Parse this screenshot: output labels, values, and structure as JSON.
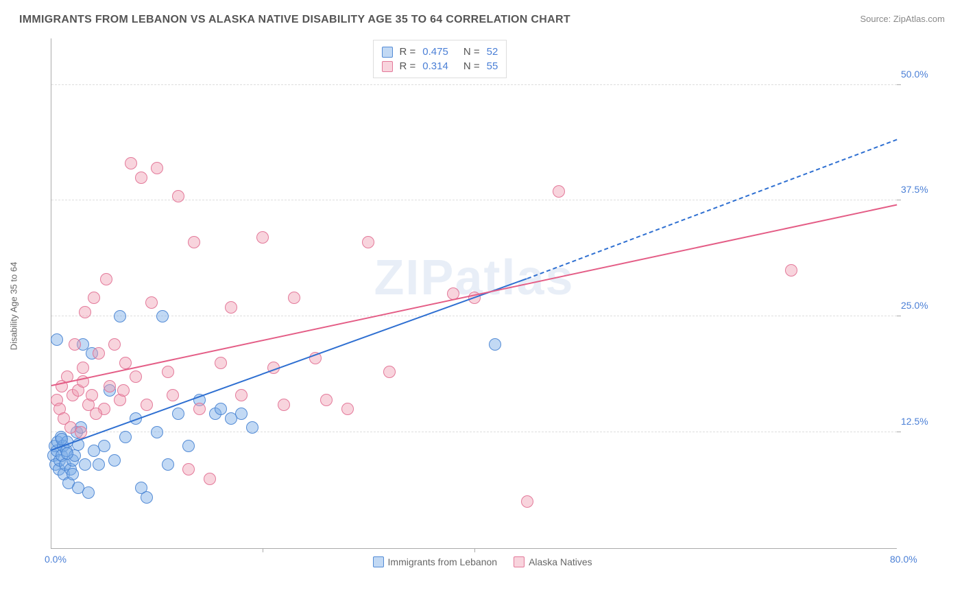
{
  "title": "IMMIGRANTS FROM LEBANON VS ALASKA NATIVE DISABILITY AGE 35 TO 64 CORRELATION CHART",
  "source_label": "Source: ",
  "source_name": "ZipAtlas.com",
  "ylabel": "Disability Age 35 to 64",
  "watermark": "ZIPatlas",
  "chart": {
    "type": "scatter",
    "xlim": [
      0,
      80
    ],
    "ylim": [
      0,
      55
    ],
    "x_ticks": [
      {
        "v": 0,
        "l": "0.0%"
      },
      {
        "v": 80,
        "l": "80.0%"
      }
    ],
    "x_minor_ticks": [
      20,
      40
    ],
    "y_ticks": [
      {
        "v": 12.5,
        "l": "12.5%"
      },
      {
        "v": 25,
        "l": "25.0%"
      },
      {
        "v": 37.5,
        "l": "37.5%"
      },
      {
        "v": 50,
        "l": "50.0%"
      }
    ],
    "background_color": "#ffffff",
    "grid_color": "#dddddd",
    "axis_color": "#aaaaaa",
    "tick_label_color": "#4a7fd6",
    "marker_radius": 9,
    "marker_opacity": 0.55,
    "marker_border_opacity": 0.9,
    "series": [
      {
        "key": "lebanon",
        "label": "Immigrants from Lebanon",
        "color_fill": "rgba(120,170,230,0.45)",
        "color_stroke": "rgba(70,130,210,0.9)",
        "trend_color": "#2e6fd1",
        "R": 0.475,
        "N": 52,
        "trend": {
          "x0": 0,
          "y0": 10.5,
          "x1": 45,
          "y1": 29,
          "ext_x": 80,
          "ext_y": 44,
          "dashed_ext": true
        },
        "points": [
          [
            0.2,
            10.0
          ],
          [
            0.3,
            11.0
          ],
          [
            0.4,
            9.0
          ],
          [
            0.5,
            10.5
          ],
          [
            0.6,
            11.5
          ],
          [
            0.7,
            8.5
          ],
          [
            0.8,
            9.5
          ],
          [
            0.9,
            12.0
          ],
          [
            1.0,
            10.0
          ],
          [
            1.1,
            11.0
          ],
          [
            1.2,
            8.0
          ],
          [
            1.3,
            9.0
          ],
          [
            1.4,
            10.5
          ],
          [
            1.5,
            11.5
          ],
          [
            1.6,
            7.0
          ],
          [
            1.8,
            8.5
          ],
          [
            2.0,
            9.5
          ],
          [
            2.2,
            10.0
          ],
          [
            2.4,
            12.5
          ],
          [
            2.5,
            6.5
          ],
          [
            2.8,
            13.0
          ],
          [
            3.0,
            22.0
          ],
          [
            3.2,
            9.0
          ],
          [
            3.5,
            6.0
          ],
          [
            3.8,
            21.0
          ],
          [
            4.0,
            10.5
          ],
          [
            4.5,
            9.0
          ],
          [
            5.0,
            11.0
          ],
          [
            5.5,
            17.0
          ],
          [
            6.0,
            9.5
          ],
          [
            6.5,
            25.0
          ],
          [
            7.0,
            12.0
          ],
          [
            8.0,
            14.0
          ],
          [
            8.5,
            6.5
          ],
          [
            9.0,
            5.5
          ],
          [
            10.0,
            12.5
          ],
          [
            10.5,
            25.0
          ],
          [
            11.0,
            9.0
          ],
          [
            12.0,
            14.5
          ],
          [
            13.0,
            11.0
          ],
          [
            14.0,
            16.0
          ],
          [
            15.5,
            14.5
          ],
          [
            16.0,
            15.0
          ],
          [
            17.0,
            14.0
          ],
          [
            18.0,
            14.5
          ],
          [
            19.0,
            13.0
          ],
          [
            42.0,
            22.0
          ],
          [
            0.5,
            22.5
          ],
          [
            1.0,
            11.8
          ],
          [
            1.5,
            10.2
          ],
          [
            2.0,
            8.0
          ],
          [
            2.5,
            11.2
          ]
        ]
      },
      {
        "key": "alaska",
        "label": "Alaska Natives",
        "color_fill": "rgba(240,160,180,0.45)",
        "color_stroke": "rgba(225,110,145,0.9)",
        "trend_color": "#e45d86",
        "R": 0.314,
        "N": 55,
        "trend": {
          "x0": 0,
          "y0": 17.5,
          "x1": 80,
          "y1": 37,
          "dashed_ext": false
        },
        "points": [
          [
            0.5,
            16.0
          ],
          [
            0.8,
            15.0
          ],
          [
            1.0,
            17.5
          ],
          [
            1.2,
            14.0
          ],
          [
            1.5,
            18.5
          ],
          [
            1.8,
            13.0
          ],
          [
            2.0,
            16.5
          ],
          [
            2.2,
            22.0
          ],
          [
            2.5,
            17.0
          ],
          [
            2.8,
            12.5
          ],
          [
            3.0,
            18.0
          ],
          [
            3.2,
            25.5
          ],
          [
            3.5,
            15.5
          ],
          [
            3.8,
            16.5
          ],
          [
            4.0,
            27.0
          ],
          [
            4.5,
            21.0
          ],
          [
            5.0,
            15.0
          ],
          [
            5.2,
            29.0
          ],
          [
            5.5,
            17.5
          ],
          [
            6.0,
            22.0
          ],
          [
            6.5,
            16.0
          ],
          [
            7.0,
            20.0
          ],
          [
            7.5,
            41.5
          ],
          [
            8.0,
            18.5
          ],
          [
            8.5,
            40.0
          ],
          [
            9.0,
            15.5
          ],
          [
            9.5,
            26.5
          ],
          [
            10.0,
            41.0
          ],
          [
            11.0,
            19.0
          ],
          [
            12.0,
            38.0
          ],
          [
            13.0,
            8.5
          ],
          [
            13.5,
            33.0
          ],
          [
            14.0,
            15.0
          ],
          [
            15.0,
            7.5
          ],
          [
            16.0,
            20.0
          ],
          [
            17.0,
            26.0
          ],
          [
            18.0,
            16.5
          ],
          [
            20.0,
            33.5
          ],
          [
            21.0,
            19.5
          ],
          [
            22.0,
            15.5
          ],
          [
            23.0,
            27.0
          ],
          [
            25.0,
            20.5
          ],
          [
            26.0,
            16.0
          ],
          [
            28.0,
            15.0
          ],
          [
            30.0,
            33.0
          ],
          [
            32.0,
            19.0
          ],
          [
            38.0,
            27.5
          ],
          [
            40.0,
            27.0
          ],
          [
            45.0,
            5.0
          ],
          [
            48.0,
            38.5
          ],
          [
            70.0,
            30.0
          ],
          [
            3.0,
            19.5
          ],
          [
            4.2,
            14.5
          ],
          [
            6.8,
            17.0
          ],
          [
            11.5,
            16.5
          ]
        ]
      }
    ]
  },
  "stats_box_labels": {
    "R": "R =",
    "N": "N ="
  },
  "bottom_legend": true
}
